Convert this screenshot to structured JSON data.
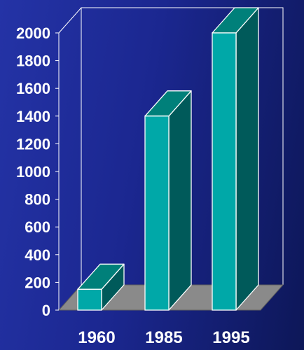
{
  "chart_data": {
    "type": "bar",
    "categories": [
      "1960",
      "1985",
      "1995"
    ],
    "values": [
      150,
      1400,
      2000
    ],
    "title": "",
    "xlabel": "",
    "ylabel": "",
    "ylim": [
      0,
      2000
    ],
    "yticks": [
      "0",
      "200",
      "400",
      "600",
      "800",
      "1000",
      "1200",
      "1400",
      "1600",
      "1800",
      "2000"
    ],
    "style": "3d-column",
    "grid": false,
    "colors": {
      "bar_front": "#00a8a8",
      "bar_top": "#00807a",
      "bar_side": "#005a5a",
      "floor": "#8a8a8a",
      "outline": "#ffffff",
      "background_left": "#2433a6",
      "background_right": "#0d1758"
    }
  }
}
